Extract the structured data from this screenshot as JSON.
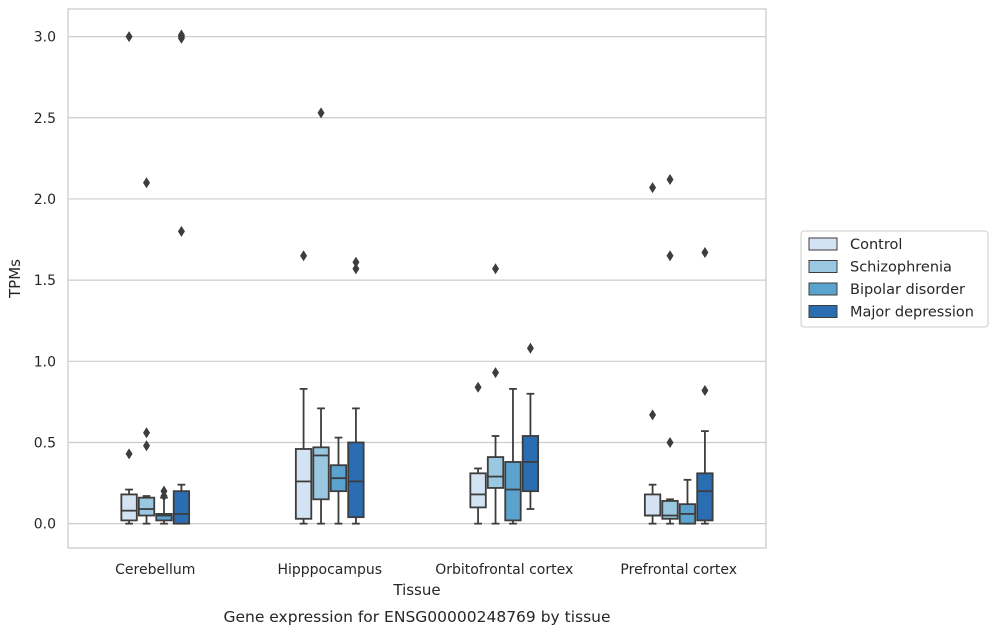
{
  "caption": "Gene expression for ENSG00000248769 by tissue",
  "chart_data": {
    "type": "box",
    "title": "",
    "xlabel": "Tissue",
    "ylabel": "TPMs",
    "ylim": [
      -0.15,
      3.17
    ],
    "yticks": [
      "0.0",
      "0.5",
      "1.0",
      "1.5",
      "2.0",
      "2.5",
      "3.0"
    ],
    "grid": "horizontal",
    "legend_position": "right",
    "categories": [
      "Cerebellum",
      "Hipppocampus",
      "Orbitofrontal cortex",
      "Prefrontal cortex"
    ],
    "series": [
      {
        "name": "Control",
        "color": "#d3e3f3",
        "boxes": [
          {
            "whislo": 0.0,
            "q1": 0.02,
            "med": 0.08,
            "q3": 0.18,
            "whishi": 0.21,
            "fliers": [
              0.43,
              3.0
            ]
          },
          {
            "whislo": 0.0,
            "q1": 0.03,
            "med": 0.26,
            "q3": 0.46,
            "whishi": 0.83,
            "fliers": [
              1.65
            ]
          },
          {
            "whislo": 0.0,
            "q1": 0.1,
            "med": 0.18,
            "q3": 0.31,
            "whishi": 0.34,
            "fliers": [
              0.84
            ]
          },
          {
            "whislo": 0.0,
            "q1": 0.05,
            "med": 0.05,
            "q3": 0.18,
            "whishi": 0.24,
            "fliers": [
              0.67,
              2.07
            ]
          }
        ]
      },
      {
        "name": "Schizophrenia",
        "color": "#9ac8e0",
        "boxes": [
          {
            "whislo": 0.0,
            "q1": 0.05,
            "med": 0.09,
            "q3": 0.16,
            "whishi": 0.17,
            "fliers": [
              0.48,
              0.56,
              2.1
            ]
          },
          {
            "whislo": 0.0,
            "q1": 0.15,
            "med": 0.42,
            "q3": 0.47,
            "whishi": 0.71,
            "fliers": [
              2.53
            ]
          },
          {
            "whislo": 0.0,
            "q1": 0.22,
            "med": 0.29,
            "q3": 0.41,
            "whishi": 0.54,
            "fliers": [
              0.93,
              1.57
            ]
          },
          {
            "whislo": 0.0,
            "q1": 0.03,
            "med": 0.05,
            "q3": 0.14,
            "whishi": 0.15,
            "fliers": [
              0.5,
              1.65,
              2.12
            ]
          }
        ]
      },
      {
        "name": "Bipolar disorder",
        "color": "#5ba3cf",
        "boxes": [
          {
            "whislo": 0.0,
            "q1": 0.02,
            "med": 0.05,
            "q3": 0.06,
            "whishi": 0.16,
            "fliers": [
              0.17,
              0.2
            ]
          },
          {
            "whislo": 0.0,
            "q1": 0.2,
            "med": 0.28,
            "q3": 0.36,
            "whishi": 0.53,
            "fliers": []
          },
          {
            "whislo": 0.0,
            "q1": 0.02,
            "med": 0.21,
            "q3": 0.38,
            "whishi": 0.83,
            "fliers": []
          },
          {
            "whislo": 0.0,
            "q1": 0.0,
            "med": 0.06,
            "q3": 0.12,
            "whishi": 0.27,
            "fliers": []
          }
        ]
      },
      {
        "name": "Major depression",
        "color": "#2a6db1",
        "boxes": [
          {
            "whislo": 0.0,
            "q1": 0.0,
            "med": 0.06,
            "q3": 0.2,
            "whishi": 0.24,
            "fliers": [
              1.8,
              2.99,
              3.0,
              3.01
            ]
          },
          {
            "whislo": 0.0,
            "q1": 0.04,
            "med": 0.26,
            "q3": 0.5,
            "whishi": 0.71,
            "fliers": [
              1.57,
              1.61
            ]
          },
          {
            "whislo": 0.09,
            "q1": 0.2,
            "med": 0.38,
            "q3": 0.54,
            "whishi": 0.8,
            "fliers": [
              1.08
            ]
          },
          {
            "whislo": 0.0,
            "q1": 0.02,
            "med": 0.2,
            "q3": 0.31,
            "whishi": 0.57,
            "fliers": [
              0.82,
              1.67
            ]
          }
        ]
      }
    ]
  }
}
